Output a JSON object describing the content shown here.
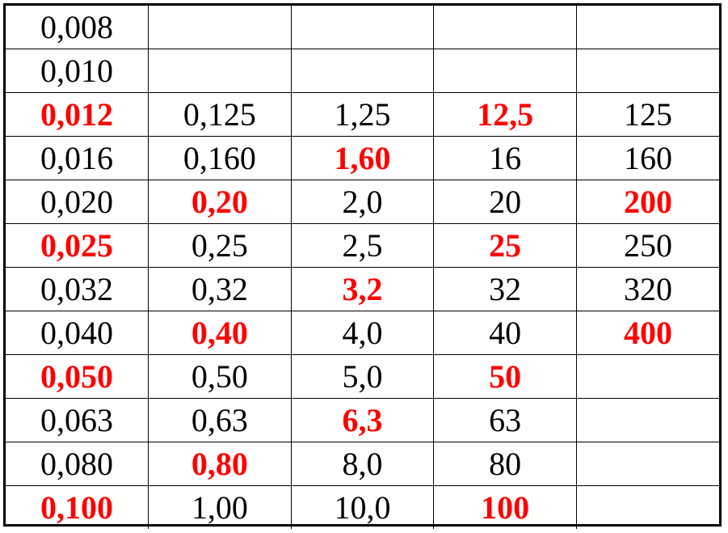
{
  "table": {
    "highlight_color": "#ff0000",
    "rows": [
      [
        {
          "v": "0,008",
          "h": false
        },
        {
          "v": "",
          "h": false
        },
        {
          "v": "",
          "h": false
        },
        {
          "v": "",
          "h": false
        },
        {
          "v": "",
          "h": false
        }
      ],
      [
        {
          "v": "0,010",
          "h": false
        },
        {
          "v": "",
          "h": false
        },
        {
          "v": "",
          "h": false
        },
        {
          "v": "",
          "h": false
        },
        {
          "v": "",
          "h": false
        }
      ],
      [
        {
          "v": "0,012",
          "h": true
        },
        {
          "v": "0,125",
          "h": false
        },
        {
          "v": "1,25",
          "h": false
        },
        {
          "v": "12,5",
          "h": true
        },
        {
          "v": "125",
          "h": false
        }
      ],
      [
        {
          "v": "0,016",
          "h": false
        },
        {
          "v": "0,160",
          "h": false
        },
        {
          "v": "1,60",
          "h": true
        },
        {
          "v": "16",
          "h": false
        },
        {
          "v": "160",
          "h": false
        }
      ],
      [
        {
          "v": "0,020",
          "h": false
        },
        {
          "v": "0,20",
          "h": true
        },
        {
          "v": "2,0",
          "h": false
        },
        {
          "v": "20",
          "h": false
        },
        {
          "v": "200",
          "h": true
        }
      ],
      [
        {
          "v": "0,025",
          "h": true
        },
        {
          "v": "0,25",
          "h": false
        },
        {
          "v": "2,5",
          "h": false
        },
        {
          "v": "25",
          "h": true
        },
        {
          "v": "250",
          "h": false
        }
      ],
      [
        {
          "v": "0,032",
          "h": false
        },
        {
          "v": "0,32",
          "h": false
        },
        {
          "v": "3,2",
          "h": true
        },
        {
          "v": "32",
          "h": false
        },
        {
          "v": "320",
          "h": false
        }
      ],
      [
        {
          "v": "0,040",
          "h": false
        },
        {
          "v": "0,40",
          "h": true
        },
        {
          "v": "4,0",
          "h": false
        },
        {
          "v": "40",
          "h": false
        },
        {
          "v": "400",
          "h": true
        }
      ],
      [
        {
          "v": "0,050",
          "h": true
        },
        {
          "v": "0,50",
          "h": false
        },
        {
          "v": "5,0",
          "h": false
        },
        {
          "v": "50",
          "h": true
        },
        {
          "v": "",
          "h": false
        }
      ],
      [
        {
          "v": "0,063",
          "h": false
        },
        {
          "v": "0,63",
          "h": false
        },
        {
          "v": "6,3",
          "h": true
        },
        {
          "v": "63",
          "h": false
        },
        {
          "v": "",
          "h": false
        }
      ],
      [
        {
          "v": "0,080",
          "h": false
        },
        {
          "v": "0,80",
          "h": true
        },
        {
          "v": "8,0",
          "h": false
        },
        {
          "v": "80",
          "h": false
        },
        {
          "v": "",
          "h": false
        }
      ],
      [
        {
          "v": "0,100",
          "h": true
        },
        {
          "v": "1,00",
          "h": false
        },
        {
          "v": "10,0",
          "h": false
        },
        {
          "v": "100",
          "h": true
        },
        {
          "v": "",
          "h": false
        }
      ]
    ]
  }
}
